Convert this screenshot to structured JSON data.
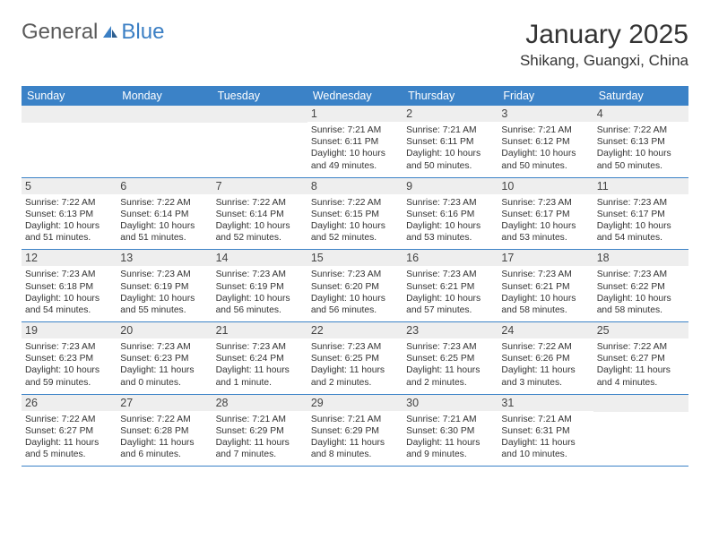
{
  "brand": {
    "general": "General",
    "blue": "Blue"
  },
  "header": {
    "title": "January 2025",
    "location": "Shikang, Guangxi, China"
  },
  "colors": {
    "header_bg": "#3b82c7",
    "day_num_bg": "#eeeeee",
    "border": "#3b82c7",
    "text": "#333333",
    "logo_gray": "#5a5a5a",
    "logo_blue": "#3b7fc4"
  },
  "dayNames": [
    "Sunday",
    "Monday",
    "Tuesday",
    "Wednesday",
    "Thursday",
    "Friday",
    "Saturday"
  ],
  "weeks": [
    [
      {
        "n": "",
        "sr": "",
        "ss": "",
        "dl": ""
      },
      {
        "n": "",
        "sr": "",
        "ss": "",
        "dl": ""
      },
      {
        "n": "",
        "sr": "",
        "ss": "",
        "dl": ""
      },
      {
        "n": "1",
        "sr": "Sunrise: 7:21 AM",
        "ss": "Sunset: 6:11 PM",
        "dl": "Daylight: 10 hours and 49 minutes."
      },
      {
        "n": "2",
        "sr": "Sunrise: 7:21 AM",
        "ss": "Sunset: 6:11 PM",
        "dl": "Daylight: 10 hours and 50 minutes."
      },
      {
        "n": "3",
        "sr": "Sunrise: 7:21 AM",
        "ss": "Sunset: 6:12 PM",
        "dl": "Daylight: 10 hours and 50 minutes."
      },
      {
        "n": "4",
        "sr": "Sunrise: 7:22 AM",
        "ss": "Sunset: 6:13 PM",
        "dl": "Daylight: 10 hours and 50 minutes."
      }
    ],
    [
      {
        "n": "5",
        "sr": "Sunrise: 7:22 AM",
        "ss": "Sunset: 6:13 PM",
        "dl": "Daylight: 10 hours and 51 minutes."
      },
      {
        "n": "6",
        "sr": "Sunrise: 7:22 AM",
        "ss": "Sunset: 6:14 PM",
        "dl": "Daylight: 10 hours and 51 minutes."
      },
      {
        "n": "7",
        "sr": "Sunrise: 7:22 AM",
        "ss": "Sunset: 6:14 PM",
        "dl": "Daylight: 10 hours and 52 minutes."
      },
      {
        "n": "8",
        "sr": "Sunrise: 7:22 AM",
        "ss": "Sunset: 6:15 PM",
        "dl": "Daylight: 10 hours and 52 minutes."
      },
      {
        "n": "9",
        "sr": "Sunrise: 7:23 AM",
        "ss": "Sunset: 6:16 PM",
        "dl": "Daylight: 10 hours and 53 minutes."
      },
      {
        "n": "10",
        "sr": "Sunrise: 7:23 AM",
        "ss": "Sunset: 6:17 PM",
        "dl": "Daylight: 10 hours and 53 minutes."
      },
      {
        "n": "11",
        "sr": "Sunrise: 7:23 AM",
        "ss": "Sunset: 6:17 PM",
        "dl": "Daylight: 10 hours and 54 minutes."
      }
    ],
    [
      {
        "n": "12",
        "sr": "Sunrise: 7:23 AM",
        "ss": "Sunset: 6:18 PM",
        "dl": "Daylight: 10 hours and 54 minutes."
      },
      {
        "n": "13",
        "sr": "Sunrise: 7:23 AM",
        "ss": "Sunset: 6:19 PM",
        "dl": "Daylight: 10 hours and 55 minutes."
      },
      {
        "n": "14",
        "sr": "Sunrise: 7:23 AM",
        "ss": "Sunset: 6:19 PM",
        "dl": "Daylight: 10 hours and 56 minutes."
      },
      {
        "n": "15",
        "sr": "Sunrise: 7:23 AM",
        "ss": "Sunset: 6:20 PM",
        "dl": "Daylight: 10 hours and 56 minutes."
      },
      {
        "n": "16",
        "sr": "Sunrise: 7:23 AM",
        "ss": "Sunset: 6:21 PM",
        "dl": "Daylight: 10 hours and 57 minutes."
      },
      {
        "n": "17",
        "sr": "Sunrise: 7:23 AM",
        "ss": "Sunset: 6:21 PM",
        "dl": "Daylight: 10 hours and 58 minutes."
      },
      {
        "n": "18",
        "sr": "Sunrise: 7:23 AM",
        "ss": "Sunset: 6:22 PM",
        "dl": "Daylight: 10 hours and 58 minutes."
      }
    ],
    [
      {
        "n": "19",
        "sr": "Sunrise: 7:23 AM",
        "ss": "Sunset: 6:23 PM",
        "dl": "Daylight: 10 hours and 59 minutes."
      },
      {
        "n": "20",
        "sr": "Sunrise: 7:23 AM",
        "ss": "Sunset: 6:23 PM",
        "dl": "Daylight: 11 hours and 0 minutes."
      },
      {
        "n": "21",
        "sr": "Sunrise: 7:23 AM",
        "ss": "Sunset: 6:24 PM",
        "dl": "Daylight: 11 hours and 1 minute."
      },
      {
        "n": "22",
        "sr": "Sunrise: 7:23 AM",
        "ss": "Sunset: 6:25 PM",
        "dl": "Daylight: 11 hours and 2 minutes."
      },
      {
        "n": "23",
        "sr": "Sunrise: 7:23 AM",
        "ss": "Sunset: 6:25 PM",
        "dl": "Daylight: 11 hours and 2 minutes."
      },
      {
        "n": "24",
        "sr": "Sunrise: 7:22 AM",
        "ss": "Sunset: 6:26 PM",
        "dl": "Daylight: 11 hours and 3 minutes."
      },
      {
        "n": "25",
        "sr": "Sunrise: 7:22 AM",
        "ss": "Sunset: 6:27 PM",
        "dl": "Daylight: 11 hours and 4 minutes."
      }
    ],
    [
      {
        "n": "26",
        "sr": "Sunrise: 7:22 AM",
        "ss": "Sunset: 6:27 PM",
        "dl": "Daylight: 11 hours and 5 minutes."
      },
      {
        "n": "27",
        "sr": "Sunrise: 7:22 AM",
        "ss": "Sunset: 6:28 PM",
        "dl": "Daylight: 11 hours and 6 minutes."
      },
      {
        "n": "28",
        "sr": "Sunrise: 7:21 AM",
        "ss": "Sunset: 6:29 PM",
        "dl": "Daylight: 11 hours and 7 minutes."
      },
      {
        "n": "29",
        "sr": "Sunrise: 7:21 AM",
        "ss": "Sunset: 6:29 PM",
        "dl": "Daylight: 11 hours and 8 minutes."
      },
      {
        "n": "30",
        "sr": "Sunrise: 7:21 AM",
        "ss": "Sunset: 6:30 PM",
        "dl": "Daylight: 11 hours and 9 minutes."
      },
      {
        "n": "31",
        "sr": "Sunrise: 7:21 AM",
        "ss": "Sunset: 6:31 PM",
        "dl": "Daylight: 11 hours and 10 minutes."
      },
      {
        "n": "",
        "sr": "",
        "ss": "",
        "dl": ""
      }
    ]
  ]
}
